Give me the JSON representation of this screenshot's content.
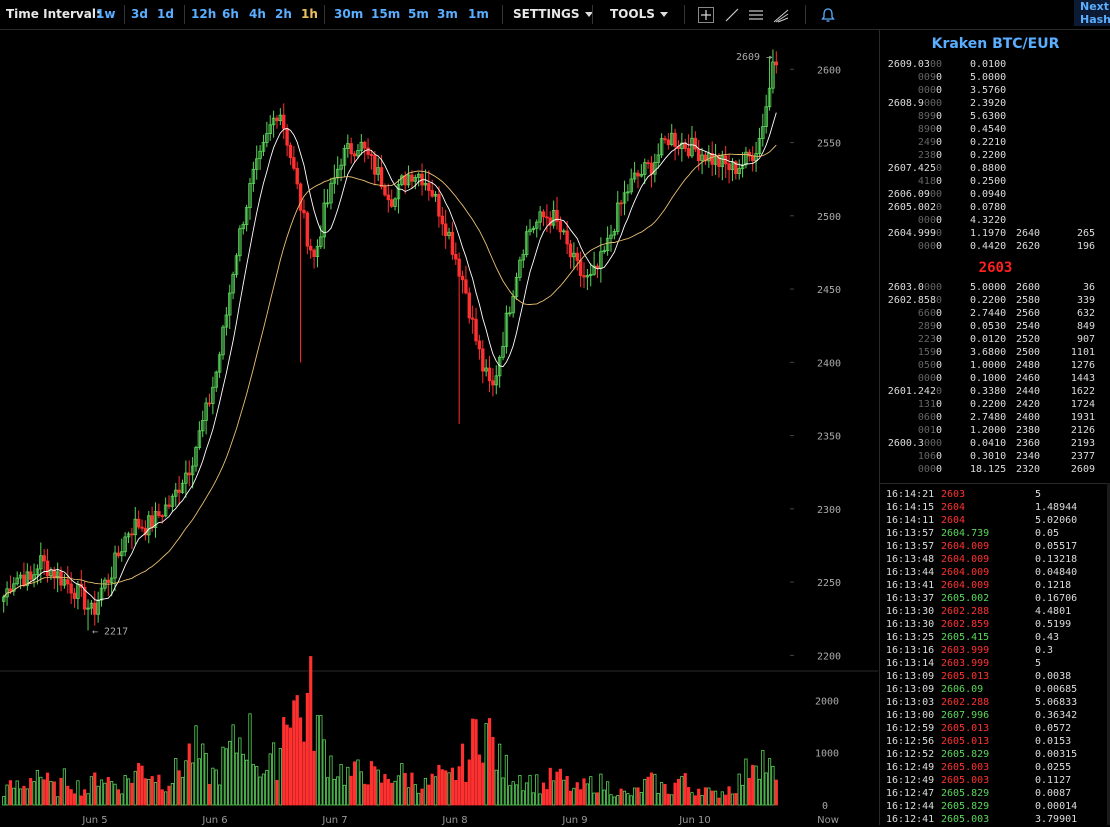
{
  "toolbar": {
    "label": "Time Interval:",
    "intervals": [
      {
        "label": "1w",
        "active": false
      },
      {
        "label": "3d",
        "active": false
      },
      {
        "label": "1d",
        "active": false
      },
      {
        "label": "12h",
        "active": false
      },
      {
        "label": "6h",
        "active": false
      },
      {
        "label": "4h",
        "active": false
      },
      {
        "label": "2h",
        "active": false
      },
      {
        "label": "1h",
        "active": true
      },
      {
        "label": "30m",
        "active": false
      },
      {
        "label": "15m",
        "active": false
      },
      {
        "label": "5m",
        "active": false
      },
      {
        "label": "3m",
        "active": false
      },
      {
        "label": "1m",
        "active": false
      }
    ],
    "settings_label": "SETTINGS",
    "tools_label": "TOOLS",
    "tool_icons": [
      "crosshair-icon",
      "line-icon",
      "horizontal-lines-icon",
      "pitchfork-icon",
      "alert-bell-icon"
    ],
    "next_label": "Next",
    "hash_label": "Hash"
  },
  "colors": {
    "up": "#5bd65b",
    "down": "#ff3030",
    "accent": "#5aaeff",
    "active_interval": "#e8c060",
    "ma_fast": "#ffffff",
    "ma_slow": "#e8c070"
  },
  "chart_data": {
    "type": "candlestick",
    "pair": "BTC/EUR",
    "price_axis": {
      "ticks": [
        2200,
        2250,
        2300,
        2350,
        2400,
        2450,
        2500,
        2550,
        2600
      ],
      "range": [
        2190,
        2620
      ]
    },
    "volume_axis": {
      "ticks": [
        0,
        1000,
        2000
      ],
      "range": [
        0,
        2200
      ]
    },
    "date_labels": [
      "Jun 5",
      "Jun 6",
      "Jun 7",
      "Jun 8",
      "Jun 9",
      "Jun 10",
      "Now"
    ],
    "annotations": [
      {
        "text": "2609 →"
      },
      {
        "text": "← 2217"
      }
    ],
    "candle_anchor_prices": [
      2240,
      2252,
      2255,
      2250,
      2265,
      2260,
      2255,
      2250,
      2245,
      2238,
      2228,
      2245,
      2255,
      2270,
      2285,
      2290,
      2288,
      2292,
      2300,
      2305,
      2320,
      2330,
      2350,
      2370,
      2395,
      2430,
      2470,
      2500,
      2525,
      2540,
      2560,
      2575,
      2550,
      2520,
      2490,
      2470,
      2500,
      2520,
      2540,
      2545,
      2550,
      2540,
      2530,
      2520,
      2510,
      2525,
      2530,
      2528,
      2520,
      2505,
      2490,
      2470,
      2450,
      2420,
      2395,
      2380,
      2410,
      2440,
      2470,
      2490,
      2495,
      2500,
      2498,
      2485,
      2470,
      2460,
      2455,
      2465,
      2480,
      2500,
      2515,
      2525,
      2530,
      2535,
      2545,
      2555,
      2550,
      2548,
      2545,
      2542,
      2538,
      2535,
      2532,
      2535,
      2540,
      2550,
      2580,
      2609
    ],
    "volume_anchor_values": [
      300,
      400,
      350,
      800,
      500,
      300,
      600,
      400,
      300,
      700,
      500,
      400,
      600,
      800,
      700,
      500,
      600,
      900,
      1200,
      800,
      600,
      1000,
      1300,
      1600,
      900,
      700,
      1100,
      2600,
      1800,
      2200,
      1400,
      900,
      700,
      600,
      800,
      600,
      500,
      700,
      600,
      500,
      400,
      600,
      500,
      800,
      1000,
      1900,
      1400,
      800,
      700,
      600,
      500,
      400,
      600,
      500,
      300,
      400,
      500,
      400,
      300,
      200,
      300,
      500,
      400,
      300,
      600,
      300,
      400,
      200,
      300,
      400,
      600,
      1200,
      900,
      500
    ]
  },
  "orderbook": {
    "title": "Kraken BTC/EUR",
    "asks": [
      {
        "price_main": "2609.03",
        "price_dim": "00",
        "size": "0.0100",
        "cum": "",
        "cumv": ""
      },
      {
        "price_main": "",
        "price_dim": "009",
        "price_tail": "0",
        "size": "5.0000",
        "cum": "",
        "cumv": ""
      },
      {
        "price_main": "",
        "price_dim": "000",
        "price_tail": "0",
        "size": "3.5760",
        "cum": "",
        "cumv": ""
      },
      {
        "price_main": "2608.9",
        "price_dim": "000",
        "size": "2.3920",
        "cum": "",
        "cumv": ""
      },
      {
        "price_main": "",
        "price_dim": "899",
        "price_tail": "0",
        "size": "5.6300",
        "cum": "",
        "cumv": ""
      },
      {
        "price_main": "",
        "price_dim": "890",
        "price_tail": "0",
        "size": "0.4540",
        "cum": "",
        "cumv": ""
      },
      {
        "price_main": "",
        "price_dim": "249",
        "price_tail": "0",
        "size": "0.2210",
        "cum": "",
        "cumv": ""
      },
      {
        "price_main": "",
        "price_dim": "238",
        "price_tail": "0",
        "size": "0.2200",
        "cum": "",
        "cumv": ""
      },
      {
        "price_main": "2607.425",
        "price_dim": "0",
        "size": "0.8800",
        "cum": "",
        "cumv": ""
      },
      {
        "price_main": "",
        "price_dim": "418",
        "price_tail": "0",
        "size": "0.2500",
        "cum": "",
        "cumv": ""
      },
      {
        "price_main": "2606.09",
        "price_dim": "00",
        "size": "0.0940",
        "cum": "",
        "cumv": ""
      },
      {
        "price_main": "2605.002",
        "price_dim": "0",
        "size": "0.0780",
        "cum": "",
        "cumv": ""
      },
      {
        "price_main": "",
        "price_dim": "000",
        "price_tail": "0",
        "size": "4.3220",
        "cum": "",
        "cumv": ""
      },
      {
        "price_main": "2604.999",
        "price_dim": "0",
        "size": "1.1970",
        "cum": "2640",
        "cumv": "265"
      },
      {
        "price_main": "",
        "price_dim": "000",
        "price_tail": "0",
        "size": "0.4420",
        "cum": "2620",
        "cumv": "196"
      }
    ],
    "mid": "2603",
    "bids": [
      {
        "price_main": "2603.0",
        "price_dim": "000",
        "size": "5.0000",
        "cum": "2600",
        "cumv": "36"
      },
      {
        "price_main": "2602.858",
        "price_dim": "0",
        "size": "0.2200",
        "cum": "2580",
        "cumv": "339"
      },
      {
        "price_main": "",
        "price_dim": "660",
        "price_tail": "0",
        "size": "2.7440",
        "cum": "2560",
        "cumv": "632"
      },
      {
        "price_main": "",
        "price_dim": "289",
        "price_tail": "0",
        "size": "0.0530",
        "cum": "2540",
        "cumv": "849"
      },
      {
        "price_main": "",
        "price_dim": "223",
        "price_tail": "0",
        "size": "0.0120",
        "cum": "2520",
        "cumv": "907"
      },
      {
        "price_main": "",
        "price_dim": "159",
        "price_tail": "0",
        "size": "3.6800",
        "cum": "2500",
        "cumv": "1101"
      },
      {
        "price_main": "",
        "price_dim": "050",
        "price_tail": "0",
        "size": "1.0000",
        "cum": "2480",
        "cumv": "1276"
      },
      {
        "price_main": "",
        "price_dim": "000",
        "price_tail": "0",
        "size": "0.1000",
        "cum": "2460",
        "cumv": "1443"
      },
      {
        "price_main": "2601.242",
        "price_dim": "0",
        "size": "0.3380",
        "cum": "2440",
        "cumv": "1622"
      },
      {
        "price_main": "",
        "price_dim": "131",
        "price_tail": "0",
        "size": "0.2200",
        "cum": "2420",
        "cumv": "1724"
      },
      {
        "price_main": "",
        "price_dim": "060",
        "price_tail": "0",
        "size": "2.7480",
        "cum": "2400",
        "cumv": "1931"
      },
      {
        "price_main": "",
        "price_dim": "001",
        "price_tail": "0",
        "size": "1.2000",
        "cum": "2380",
        "cumv": "2126"
      },
      {
        "price_main": "2600.3",
        "price_dim": "000",
        "size": "0.0410",
        "cum": "2360",
        "cumv": "2193"
      },
      {
        "price_main": "",
        "price_dim": "106",
        "price_tail": "0",
        "size": "0.3010",
        "cum": "2340",
        "cumv": "2377"
      },
      {
        "price_main": "",
        "price_dim": "000",
        "price_tail": "0",
        "size": "18.125",
        "cum": "2320",
        "cumv": "2609"
      }
    ]
  },
  "trades": [
    {
      "time": "16:14:21",
      "price": "2603",
      "amount": "5",
      "dir": "down"
    },
    {
      "time": "16:14:15",
      "price": "2604",
      "amount": "1.48944",
      "dir": "down"
    },
    {
      "time": "16:14:11",
      "price": "2604",
      "amount": "5.02060",
      "dir": "down"
    },
    {
      "time": "16:13:57",
      "price": "2604.739",
      "amount": "0.05",
      "dir": "up"
    },
    {
      "time": "16:13:57",
      "price": "2604.009",
      "amount": "0.05517",
      "dir": "down"
    },
    {
      "time": "16:13:48",
      "price": "2604.009",
      "amount": "0.13218",
      "dir": "down"
    },
    {
      "time": "16:13:44",
      "price": "2604.009",
      "amount": "0.04840",
      "dir": "down"
    },
    {
      "time": "16:13:41",
      "price": "2604.009",
      "amount": "0.1218",
      "dir": "down"
    },
    {
      "time": "16:13:37",
      "price": "2605.002",
      "amount": "0.16706",
      "dir": "up"
    },
    {
      "time": "16:13:30",
      "price": "2602.288",
      "amount": "4.4801",
      "dir": "down"
    },
    {
      "time": "16:13:30",
      "price": "2602.859",
      "amount": "0.5199",
      "dir": "down"
    },
    {
      "time": "16:13:25",
      "price": "2605.415",
      "amount": "0.43",
      "dir": "up"
    },
    {
      "time": "16:13:16",
      "price": "2603.999",
      "amount": "0.3",
      "dir": "down"
    },
    {
      "time": "16:13:14",
      "price": "2603.999",
      "amount": "5",
      "dir": "down"
    },
    {
      "time": "16:13:09",
      "price": "2605.013",
      "amount": "0.0038",
      "dir": "down"
    },
    {
      "time": "16:13:09",
      "price": "2606.09",
      "amount": "0.00685",
      "dir": "up"
    },
    {
      "time": "16:13:03",
      "price": "2602.288",
      "amount": "5.06833",
      "dir": "down"
    },
    {
      "time": "16:13:00",
      "price": "2607.996",
      "amount": "0.36342",
      "dir": "up"
    },
    {
      "time": "16:12:59",
      "price": "2605.013",
      "amount": "0.0572",
      "dir": "down"
    },
    {
      "time": "16:12:56",
      "price": "2605.013",
      "amount": "0.0153",
      "dir": "down"
    },
    {
      "time": "16:12:52",
      "price": "2605.829",
      "amount": "0.00315",
      "dir": "up"
    },
    {
      "time": "16:12:49",
      "price": "2605.003",
      "amount": "0.0255",
      "dir": "down"
    },
    {
      "time": "16:12:49",
      "price": "2605.003",
      "amount": "0.1127",
      "dir": "down"
    },
    {
      "time": "16:12:47",
      "price": "2605.829",
      "amount": "0.0087",
      "dir": "up"
    },
    {
      "time": "16:12:44",
      "price": "2605.829",
      "amount": "0.00014",
      "dir": "up"
    },
    {
      "time": "16:12:41",
      "price": "2605.003",
      "amount": "3.79901",
      "dir": "up"
    }
  ]
}
